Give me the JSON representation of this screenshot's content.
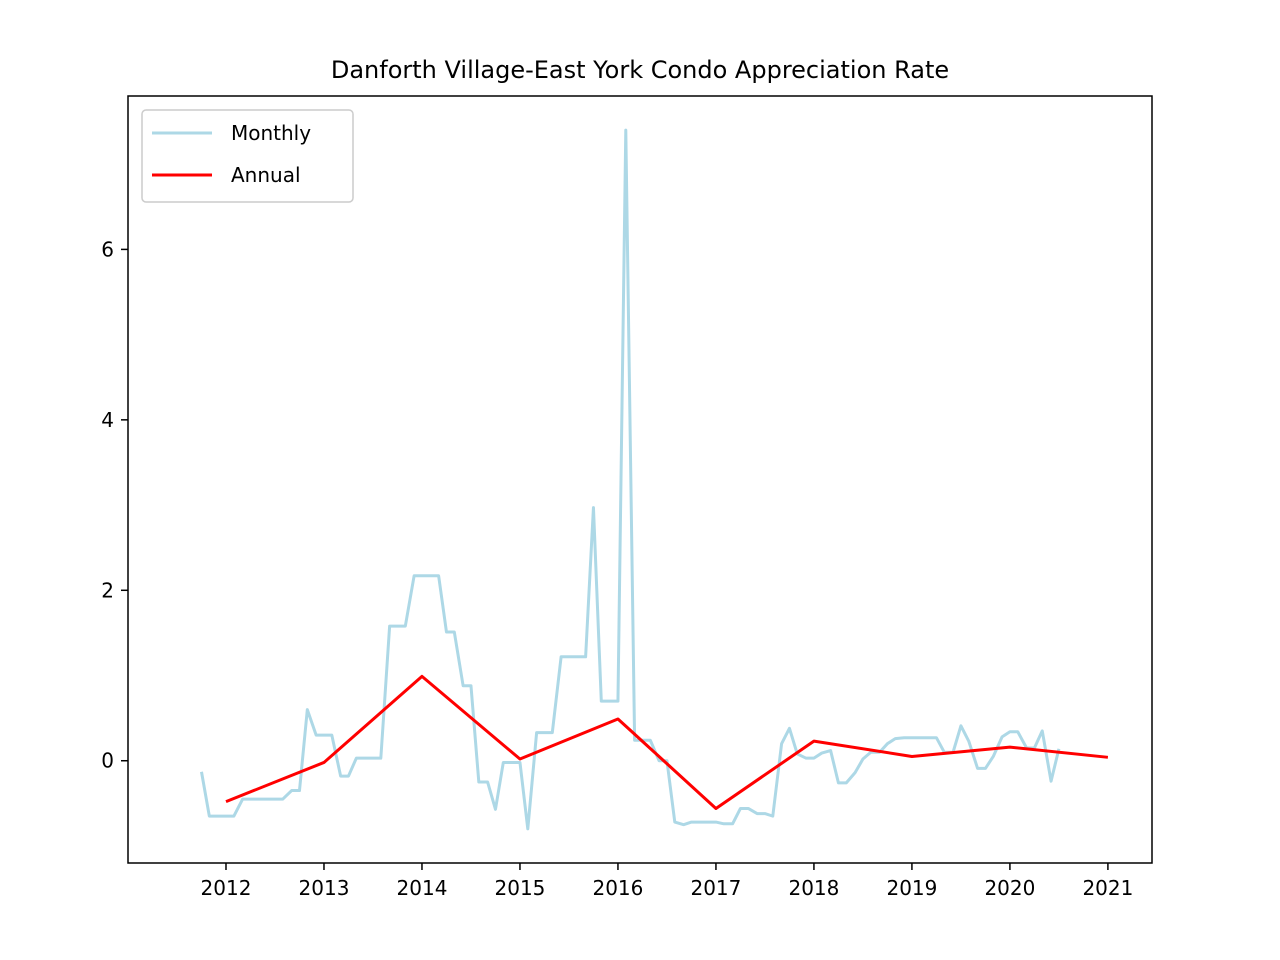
{
  "chart_data": {
    "type": "line",
    "title": "Danforth Village-East York Condo Appreciation Rate",
    "xlabel": "",
    "ylabel": "",
    "xlim": [
      2011.0,
      2021.45
    ],
    "ylim": [
      -1.2,
      7.8
    ],
    "x_ticks": [
      "2012",
      "2013",
      "2014",
      "2015",
      "2016",
      "2017",
      "2018",
      "2019",
      "2020",
      "2021"
    ],
    "y_ticks": [
      "0",
      "2",
      "4",
      "6"
    ],
    "grid": false,
    "legend_position": "top-left",
    "series": [
      {
        "name": "Monthly",
        "color": "#add8e6",
        "x": [
          2011.75,
          2011.83,
          2011.92,
          2012.0,
          2012.08,
          2012.17,
          2012.25,
          2012.33,
          2012.42,
          2012.5,
          2012.58,
          2012.67,
          2012.75,
          2012.83,
          2012.92,
          2013.0,
          2013.08,
          2013.17,
          2013.25,
          2013.33,
          2013.42,
          2013.5,
          2013.58,
          2013.67,
          2013.75,
          2013.83,
          2013.92,
          2014.0,
          2014.08,
          2014.17,
          2014.25,
          2014.33,
          2014.42,
          2014.5,
          2014.58,
          2014.67,
          2014.75,
          2014.83,
          2014.92,
          2015.0,
          2015.08,
          2015.17,
          2015.25,
          2015.33,
          2015.42,
          2015.5,
          2015.58,
          2015.67,
          2015.75,
          2015.83,
          2015.92,
          2016.0,
          2016.08,
          2016.17,
          2016.25,
          2016.33,
          2016.42,
          2016.5,
          2016.58,
          2016.67,
          2016.75,
          2016.83,
          2016.92,
          2017.0,
          2017.08,
          2017.17,
          2017.25,
          2017.33,
          2017.42,
          2017.5,
          2017.58,
          2017.67,
          2017.75,
          2017.83,
          2017.92,
          2018.0,
          2018.08,
          2018.17,
          2018.25,
          2018.33,
          2018.42,
          2018.5,
          2018.58,
          2018.67,
          2018.75,
          2018.83,
          2018.92,
          2019.0,
          2019.08,
          2019.17,
          2019.25,
          2019.33,
          2019.42,
          2019.5,
          2019.58,
          2019.67,
          2019.75,
          2019.83,
          2019.92,
          2020.0,
          2020.08,
          2020.17,
          2020.25,
          2020.33,
          2020.42,
          2020.5
        ],
        "y": [
          -0.13,
          -0.65,
          -0.65,
          -0.65,
          -0.65,
          -0.45,
          -0.45,
          -0.45,
          -0.45,
          -0.45,
          -0.45,
          -0.35,
          -0.35,
          0.6,
          0.3,
          0.3,
          0.3,
          -0.18,
          -0.18,
          0.03,
          0.03,
          0.03,
          0.03,
          1.58,
          1.58,
          1.58,
          2.17,
          2.17,
          2.17,
          2.17,
          1.51,
          1.51,
          0.88,
          0.88,
          -0.25,
          -0.25,
          -0.57,
          -0.02,
          -0.02,
          -0.02,
          -0.8,
          0.33,
          0.33,
          0.33,
          1.22,
          1.22,
          1.22,
          1.22,
          2.97,
          0.7,
          0.7,
          0.7,
          7.4,
          0.24,
          0.24,
          0.24,
          0.0,
          0.0,
          -0.72,
          -0.75,
          -0.72,
          -0.72,
          -0.72,
          -0.72,
          -0.74,
          -0.74,
          -0.56,
          -0.56,
          -0.62,
          -0.62,
          -0.65,
          0.2,
          0.38,
          0.08,
          0.03,
          0.03,
          0.09,
          0.12,
          -0.26,
          -0.26,
          -0.14,
          0.02,
          0.1,
          0.1,
          0.2,
          0.26,
          0.27,
          0.27,
          0.27,
          0.27,
          0.27,
          0.1,
          0.1,
          0.41,
          0.23,
          -0.09,
          -0.09,
          0.05,
          0.28,
          0.34,
          0.34,
          0.15,
          0.15,
          0.35,
          -0.24,
          0.14
        ]
      },
      {
        "name": "Annual",
        "color": "#ff0000",
        "x": [
          2012,
          2013,
          2014,
          2015,
          2016,
          2017,
          2018,
          2019,
          2020,
          2021
        ],
        "y": [
          -0.48,
          -0.02,
          0.99,
          0.02,
          0.49,
          -0.56,
          0.23,
          0.05,
          0.16,
          0.04
        ]
      }
    ]
  }
}
